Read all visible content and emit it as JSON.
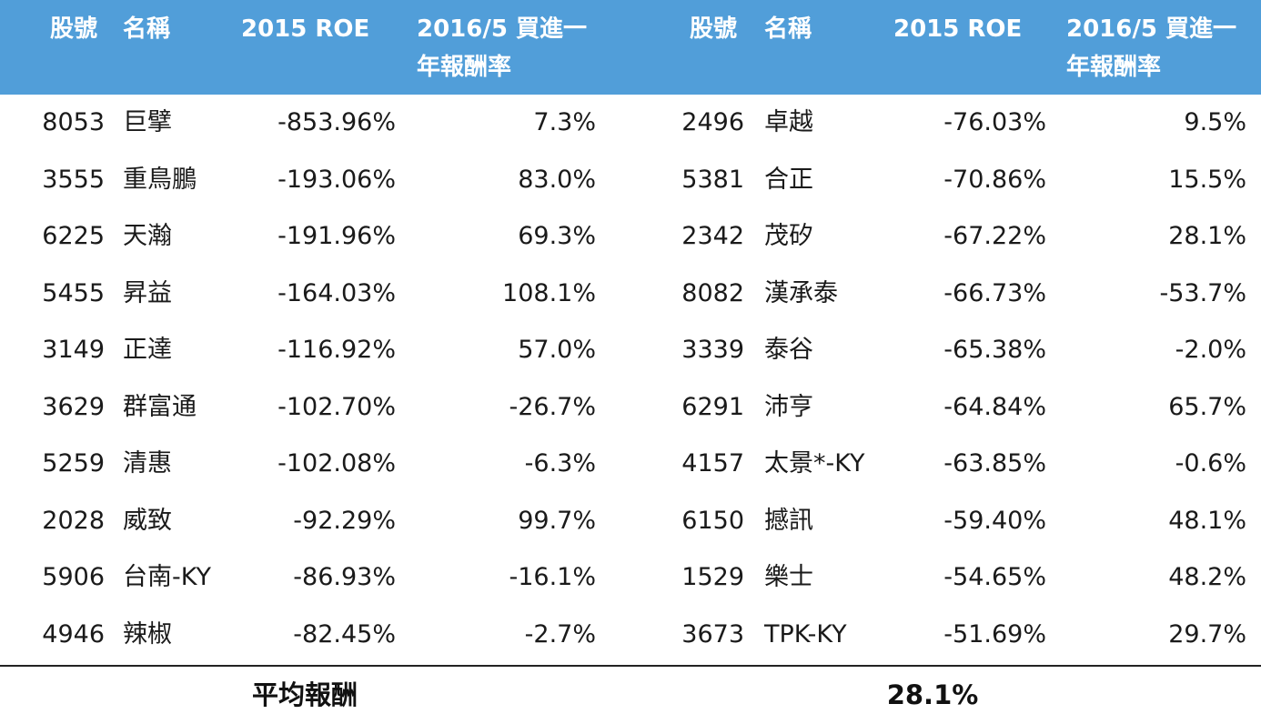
{
  "table": {
    "header": [
      "股號",
      "名稱",
      "2015 ROE",
      "2016/5 買進一年報酬率",
      "股號",
      "名稱",
      "2015 ROE",
      "2016/5 買進一年報酬率"
    ],
    "rows": [
      [
        "8053",
        "巨擘",
        "-853.96%",
        "7.3%",
        "2496",
        "卓越",
        "-76.03%",
        "9.5%"
      ],
      [
        "3555",
        "重鳥鵬",
        "-193.06%",
        "83.0%",
        "5381",
        "合正",
        "-70.86%",
        "15.5%"
      ],
      [
        "6225",
        "天瀚",
        "-191.96%",
        "69.3%",
        "2342",
        "茂矽",
        "-67.22%",
        "28.1%"
      ],
      [
        "5455",
        "昇益",
        "-164.03%",
        "108.1%",
        "8082",
        "漢承泰",
        "-66.73%",
        "-53.7%"
      ],
      [
        "3149",
        "正達",
        "-116.92%",
        "57.0%",
        "3339",
        "泰谷",
        "-65.38%",
        "-2.0%"
      ],
      [
        "3629",
        "群富通",
        "-102.70%",
        "-26.7%",
        "6291",
        "沛亨",
        "-64.84%",
        "65.7%"
      ],
      [
        "5259",
        "清惠",
        "-102.08%",
        "-6.3%",
        "4157",
        "太景*-KY",
        "-63.85%",
        "-0.6%"
      ],
      [
        "2028",
        "威致",
        "-92.29%",
        "99.7%",
        "6150",
        "撼訊",
        "-59.40%",
        "48.1%"
      ],
      [
        "5906",
        "台南-KY",
        "-86.93%",
        "-16.1%",
        "1529",
        "樂士",
        "-54.65%",
        "48.2%"
      ],
      [
        "4946",
        "辣椒",
        "-82.45%",
        "-2.7%",
        "3673",
        "TPK-KY",
        "-51.69%",
        "29.7%"
      ]
    ],
    "footer": {
      "label": "平均報酬",
      "value": "28.1%"
    }
  }
}
